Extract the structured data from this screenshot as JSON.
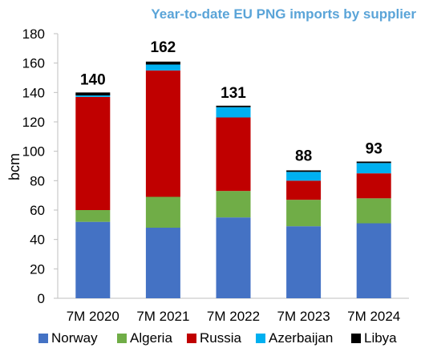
{
  "chart_data": {
    "type": "bar",
    "stacked": true,
    "title": "Year-to-date EU PNG imports by supplier",
    "xlabel": "",
    "ylabel": "bcm",
    "ylim": [
      0,
      180
    ],
    "yticks": [
      0,
      20,
      40,
      60,
      80,
      100,
      120,
      140,
      160,
      180
    ],
    "categories": [
      "7M 2020",
      "7M 2021",
      "7M 2022",
      "7M 2023",
      "7M 2024"
    ],
    "series": [
      {
        "name": "Norway",
        "color": "#4472c4",
        "values": [
          52,
          48,
          55,
          49,
          51
        ]
      },
      {
        "name": "Algeria",
        "color": "#70ad47",
        "values": [
          8,
          21,
          18,
          18,
          17
        ]
      },
      {
        "name": "Russia",
        "color": "#c00000",
        "values": [
          77,
          86,
          50,
          13,
          17
        ]
      },
      {
        "name": "Azerbaijan",
        "color": "#00b0f0",
        "values": [
          1,
          4,
          7,
          6,
          7
        ]
      },
      {
        "name": "Libya",
        "color": "#000000",
        "values": [
          2,
          2,
          1,
          1,
          1
        ]
      }
    ],
    "totals": [
      140,
      162,
      131,
      88,
      93
    ],
    "legend_position": "bottom",
    "grid": false
  }
}
